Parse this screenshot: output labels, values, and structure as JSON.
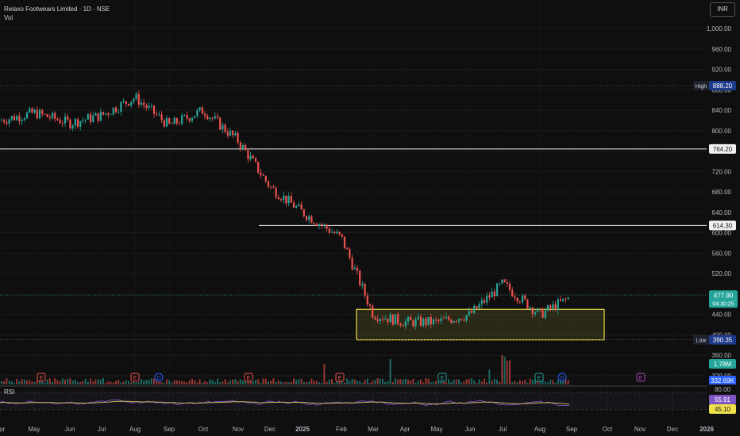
{
  "header": {
    "title": "Relaxo Footwears Limited · 1D · NSE",
    "vol_label": "Vol"
  },
  "currency_button": "INR",
  "chart_data": {
    "type": "candlestick",
    "y_ticks": [
      "1,000.00",
      "960.00",
      "920.00",
      "880.00",
      "840.00",
      "800.00",
      "760.00",
      "720.00",
      "680.00",
      "640.00",
      "600.00",
      "560.00",
      "520.00",
      "480.00",
      "440.00",
      "400.00",
      "360.00",
      "320.00"
    ],
    "x_ticks": [
      "Apr",
      "May",
      "Jun",
      "Jul",
      "Aug",
      "Sep",
      "Oct",
      "Nov",
      "Dec",
      "2025",
      "Feb",
      "Mar",
      "Apr",
      "May",
      "Jun",
      "Jul",
      "Aug",
      "Sep",
      "Oct",
      "Nov",
      "Dec",
      "2026"
    ],
    "price_path": [
      [
        "Apr",
        820
      ],
      [
        "May",
        835
      ],
      [
        "Jun",
        815
      ],
      [
        "Jul",
        830
      ],
      [
        "Aug",
        865
      ],
      [
        "Sep",
        810
      ],
      [
        "Oct",
        840
      ],
      [
        "Nov",
        780
      ],
      [
        "Dec",
        690
      ],
      [
        "2025",
        640
      ],
      [
        "Feb",
        590
      ],
      [
        "Mar",
        440
      ],
      [
        "Apr",
        425
      ],
      [
        "May",
        425
      ],
      [
        "Jun",
        440
      ],
      [
        "Jul",
        500
      ],
      [
        "Aug",
        440
      ],
      [
        "Sep",
        475
      ]
    ],
    "horizontal_lines": [
      {
        "label": "764.20",
        "value": 764.2
      },
      {
        "label": "614.30",
        "value": 614.3
      }
    ],
    "high": {
      "label": "High",
      "value_text": "888.20"
    },
    "low": {
      "label": "Low",
      "value_text": "390.35"
    },
    "last_price": {
      "value_text": "477.90",
      "countdown": "04:30:25"
    },
    "support_zone": {
      "from": 390.35,
      "to": 450
    },
    "volume": {
      "last": "1.78M",
      "ma": "332.69K"
    },
    "events": [
      "E",
      "E",
      "D",
      "E",
      "E",
      "E",
      "E",
      "D",
      "E"
    ],
    "rsi": {
      "label": "RSI",
      "levels": [
        "80.00",
        "55.91",
        "45.10"
      ]
    },
    "colors": {
      "up": "#26a69a",
      "down": "#ef5350",
      "zone": "#f0e14a",
      "rsi": "#7e57c2",
      "rsi_ma": "#c9b458"
    }
  }
}
